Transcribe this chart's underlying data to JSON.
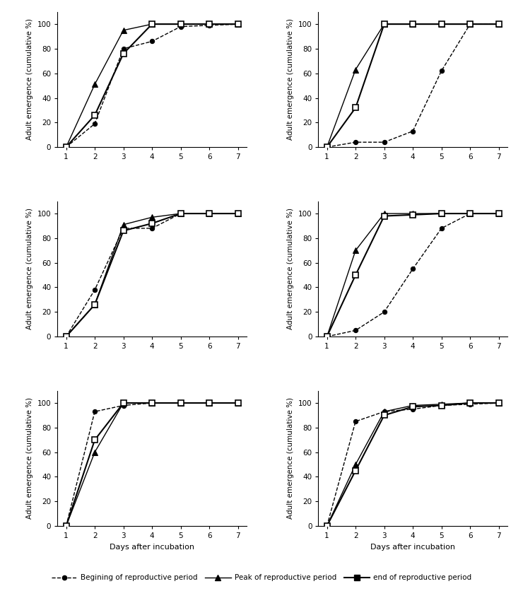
{
  "x": [
    1,
    2,
    3,
    4,
    5,
    6,
    7
  ],
  "panels": [
    {
      "row": 0,
      "col": 0,
      "series": [
        {
          "y": [
            0,
            19,
            80,
            86,
            98,
            99,
            100
          ]
        },
        {
          "y": [
            0,
            51,
            95,
            100,
            100,
            100,
            100
          ]
        },
        {
          "y": [
            0,
            26,
            76,
            100,
            100,
            100,
            100
          ]
        }
      ]
    },
    {
      "row": 0,
      "col": 1,
      "series": [
        {
          "y": [
            0,
            4,
            4,
            13,
            62,
            100,
            100
          ]
        },
        {
          "y": [
            0,
            63,
            100,
            100,
            100,
            100,
            100
          ]
        },
        {
          "y": [
            0,
            32,
            100,
            100,
            100,
            100,
            100
          ]
        }
      ]
    },
    {
      "row": 1,
      "col": 0,
      "series": [
        {
          "y": [
            0,
            38,
            88,
            88,
            100,
            100,
            100
          ]
        },
        {
          "y": [
            0,
            26,
            91,
            97,
            100,
            100,
            100
          ]
        },
        {
          "y": [
            0,
            26,
            86,
            92,
            100,
            100,
            100
          ]
        }
      ]
    },
    {
      "row": 1,
      "col": 1,
      "series": [
        {
          "y": [
            0,
            5,
            20,
            55,
            88,
            100,
            100
          ]
        },
        {
          "y": [
            0,
            70,
            100,
            100,
            100,
            100,
            100
          ]
        },
        {
          "y": [
            0,
            50,
            98,
            99,
            100,
            100,
            100
          ]
        }
      ]
    },
    {
      "row": 2,
      "col": 0,
      "series": [
        {
          "y": [
            0,
            93,
            98,
            100,
            100,
            100,
            100
          ]
        },
        {
          "y": [
            0,
            60,
            100,
            100,
            100,
            100,
            100
          ]
        },
        {
          "y": [
            0,
            70,
            100,
            100,
            100,
            100,
            100
          ]
        }
      ]
    },
    {
      "row": 2,
      "col": 1,
      "series": [
        {
          "y": [
            0,
            85,
            93,
            95,
            98,
            99,
            100
          ]
        },
        {
          "y": [
            0,
            50,
            93,
            98,
            99,
            100,
            100
          ]
        },
        {
          "y": [
            0,
            45,
            90,
            97,
            98,
            100,
            100
          ]
        }
      ]
    }
  ],
  "xlabel": "Days after incubation",
  "ylabel": "Adult emergence (cumulative %)",
  "ylim": [
    0,
    110
  ],
  "yticks": [
    0,
    20,
    40,
    60,
    80,
    100
  ],
  "xticks": [
    1,
    2,
    3,
    4,
    5,
    6,
    7
  ],
  "xlim": [
    0.7,
    7.3
  ],
  "legend_labels": [
    "Begining of reproductive period",
    "Peak of reproductive period",
    "end of reproductive period"
  ]
}
